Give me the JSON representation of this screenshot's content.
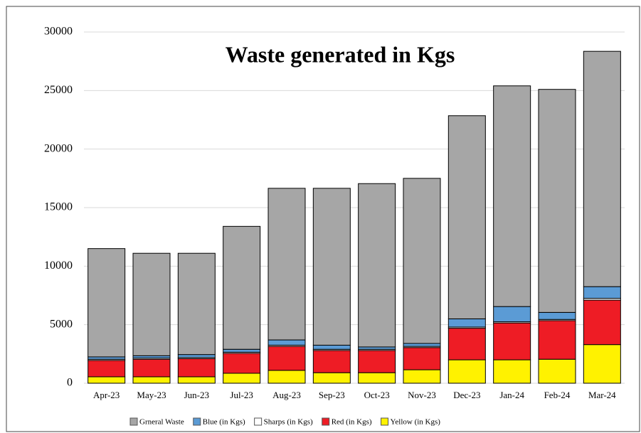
{
  "chart_data": {
    "type": "stacked_bar",
    "title": "Waste generated in Kgs",
    "categories": [
      "Apr-23",
      "May-23",
      "Jun-23",
      "Jul-23",
      "Aug-23",
      "Sep-23",
      "Oct-23",
      "Nov-23",
      "Dec-23",
      "Jan-24",
      "Feb-24",
      "Mar-24"
    ],
    "series": [
      {
        "name": "Grneral Waste",
        "color": "#a6a6a6",
        "values": [
          9250,
          8750,
          8650,
          10500,
          12950,
          13400,
          13950,
          14100,
          17350,
          18850,
          19050,
          20100
        ]
      },
      {
        "name": "Blue (in Kgs)",
        "color": "#5b9bd5",
        "values": [
          200,
          200,
          250,
          250,
          450,
          350,
          200,
          250,
          700,
          1300,
          600,
          1000
        ]
      },
      {
        "name": "Sharps (in Kgs)",
        "color": "#ffffff",
        "values": [
          100,
          100,
          100,
          100,
          100,
          100,
          100,
          100,
          100,
          100,
          100,
          150
        ]
      },
      {
        "name": "Red (in Kgs)",
        "color": "#ee1c25",
        "values": [
          1400,
          1500,
          1550,
          1700,
          2050,
          1900,
          1900,
          1900,
          2700,
          3150,
          3300,
          3800
        ]
      },
      {
        "name": "Yellow (in Kgs)",
        "color": "#fff200",
        "values": [
          550,
          550,
          550,
          850,
          1100,
          900,
          900,
          1150,
          2000,
          2000,
          2050,
          3300
        ]
      }
    ],
    "ylim": [
      0,
      30000
    ],
    "yticks": [
      0,
      5000,
      10000,
      15000,
      20000,
      25000,
      30000
    ],
    "grid": true,
    "legend": "bottom"
  }
}
